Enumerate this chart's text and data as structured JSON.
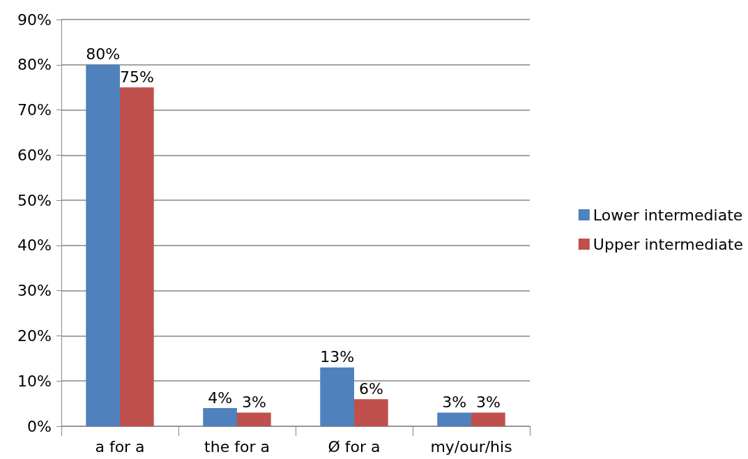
{
  "chart_data": {
    "type": "bar",
    "categories": [
      "a for a",
      "the for a",
      "Ø for a",
      "my/our/his"
    ],
    "series": [
      {
        "name": "Lower intermediate",
        "color": "#4f81bd",
        "values": [
          80,
          4,
          13,
          3
        ],
        "value_labels": [
          "80%",
          "4%",
          "13%",
          "3%"
        ]
      },
      {
        "name": "Upper intermediate",
        "color": "#c0504d",
        "values": [
          75,
          3,
          6,
          3
        ],
        "value_labels": [
          "75%",
          "3%",
          "6%",
          "3%"
        ]
      }
    ],
    "ylim": [
      0,
      90
    ],
    "yticks": [
      {
        "value": 0,
        "label": "0%"
      },
      {
        "value": 10,
        "label": "10%"
      },
      {
        "value": 20,
        "label": "20%"
      },
      {
        "value": 30,
        "label": "30%"
      },
      {
        "value": 40,
        "label": "40%"
      },
      {
        "value": 50,
        "label": "50%"
      },
      {
        "value": 60,
        "label": "60%"
      },
      {
        "value": 70,
        "label": "70%"
      },
      {
        "value": 80,
        "label": "80%"
      },
      {
        "value": 90,
        "label": "90%"
      }
    ],
    "grid": "y",
    "legend": "right"
  }
}
